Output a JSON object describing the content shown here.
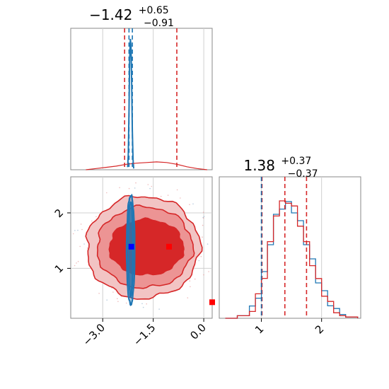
{
  "chart_data": [
    {
      "type": "line",
      "panel": "marginal-top",
      "title_html": "−1.42<sup>+0.65</sup><sub>−0.91</sub>",
      "title": {
        "value": "−1.42",
        "upper": "+0.65",
        "lower": "−0.91"
      },
      "xlim": [
        -3.95,
        0.25
      ],
      "x_gridlines": [
        -3.0,
        -1.5,
        0.0
      ],
      "series": [
        {
          "color": "#1f77b4",
          "x": [
            -2.26,
            -2.24,
            -2.22,
            -2.2,
            -2.18,
            -2.16,
            -2.14,
            -2.12,
            -2.1,
            -2.08
          ],
          "density": [
            0.02,
            0.12,
            0.45,
            0.85,
            1.0,
            0.95,
            0.65,
            0.3,
            0.08,
            0.01
          ]
        },
        {
          "color": "#d62728",
          "x": [
            -3.5,
            -3.2,
            -2.9,
            -2.6,
            -2.3,
            -2.0,
            -1.7,
            -1.4,
            -1.1,
            -0.8,
            -0.5,
            -0.2,
            0.1
          ],
          "density": [
            0.0,
            0.01,
            0.02,
            0.03,
            0.045,
            0.055,
            0.06,
            0.065,
            0.06,
            0.045,
            0.025,
            0.01,
            0.0
          ]
        }
      ],
      "dashed_lines": [
        {
          "color": "#d62728",
          "x": -2.35
        },
        {
          "color": "#d62728",
          "x": -0.8
        },
        {
          "color": "#1f77b4",
          "x": -2.22
        },
        {
          "color": "#1f77b4",
          "x": -2.12
        }
      ]
    },
    {
      "type": "heatmap",
      "panel": "joint-2d",
      "xlim": [
        -3.95,
        0.25
      ],
      "ylim": [
        0.1,
        2.65
      ],
      "x_ticks": [
        "−3.0",
        "−1.5",
        "0.0"
      ],
      "x_tick_values": [
        -3.0,
        -1.5,
        0.0
      ],
      "y_ticks": [
        "1",
        "2"
      ],
      "y_tick_values": [
        1,
        2
      ],
      "markers": [
        {
          "color": "#0000ff",
          "x": -2.15,
          "y": 1.39
        },
        {
          "color": "#ff0000",
          "x": -1.03,
          "y": 1.39
        },
        {
          "color": "#ff0000",
          "x": 0.25,
          "y": 0.39
        }
      ],
      "contours": [
        {
          "series": "red",
          "level": "outer",
          "color": "#d62728",
          "cx": -1.8,
          "cy": 1.38,
          "rx": 1.68,
          "ry": 0.92
        },
        {
          "series": "red",
          "level": "middle",
          "color": "#d62728",
          "cx": -1.75,
          "cy": 1.38,
          "rx": 1.42,
          "ry": 0.73
        },
        {
          "series": "red",
          "level": "inner",
          "color": "#d62728",
          "cx": -1.7,
          "cy": 1.38,
          "rx": 1.1,
          "ry": 0.5
        },
        {
          "series": "blue",
          "level": "outer",
          "color": "#1f77b4",
          "cx": -2.17,
          "cy": 1.33,
          "rx": 0.12,
          "ry": 0.98
        },
        {
          "series": "blue",
          "level": "inner",
          "color": "#1f77b4",
          "cx": -2.17,
          "cy": 1.35,
          "rx": 0.07,
          "ry": 0.85
        }
      ]
    },
    {
      "type": "line",
      "panel": "marginal-right",
      "title_html": "1.38<sup>+0.37</sup><sub>−0.37</sub>",
      "title": {
        "value": "1.38",
        "upper": "+0.37",
        "lower": "−0.37"
      },
      "xlim": [
        0.3,
        2.65
      ],
      "x_ticks": [
        "1",
        "2"
      ],
      "x_tick_values": [
        1,
        2
      ],
      "series": [
        {
          "color": "#1f77b4",
          "x": [
            0.4,
            0.6,
            0.8,
            0.9,
            1.0,
            1.1,
            1.2,
            1.3,
            1.4,
            1.5,
            1.6,
            1.7,
            1.8,
            1.9,
            2.0,
            2.1,
            2.2,
            2.3,
            2.4,
            2.6
          ],
          "density": [
            0.0,
            0.02,
            0.08,
            0.18,
            0.35,
            0.6,
            0.8,
            0.88,
            0.9,
            0.85,
            0.75,
            0.6,
            0.45,
            0.3,
            0.2,
            0.12,
            0.06,
            0.03,
            0.01,
            0.0
          ]
        },
        {
          "color": "#d62728",
          "x": [
            0.4,
            0.6,
            0.8,
            0.9,
            1.0,
            1.1,
            1.2,
            1.3,
            1.4,
            1.5,
            1.6,
            1.7,
            1.8,
            1.9,
            2.0,
            2.1,
            2.2,
            2.3,
            2.4,
            2.6
          ],
          "density": [
            0.0,
            0.02,
            0.07,
            0.17,
            0.33,
            0.58,
            0.82,
            0.9,
            0.92,
            0.86,
            0.74,
            0.58,
            0.43,
            0.29,
            0.19,
            0.11,
            0.06,
            0.02,
            0.01,
            0.0
          ]
        }
      ],
      "dashed_lines": [
        {
          "color": "#d62728",
          "x": 1.01
        },
        {
          "color": "#1f77b4",
          "x": 1.0
        },
        {
          "color": "#d62728",
          "x": 1.39
        },
        {
          "color": "#d62728",
          "x": 1.75
        }
      ]
    }
  ]
}
